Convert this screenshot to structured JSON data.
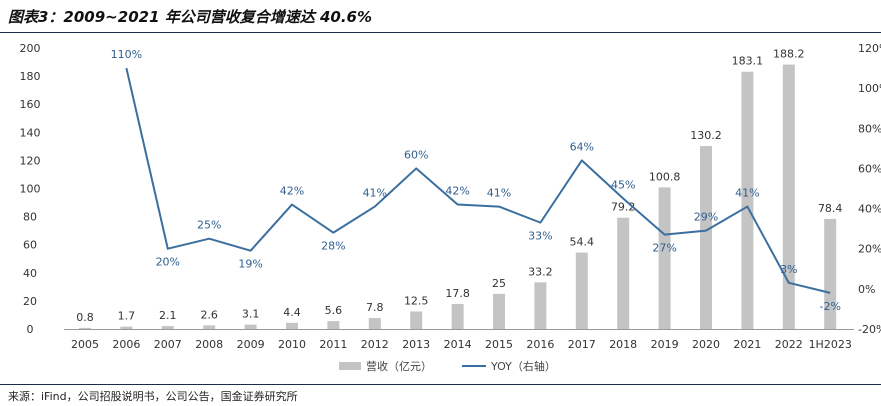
{
  "title": "图表3：2009~2021 年公司营收复合增速达 40.6%",
  "source": "来源：iFind，公司招股说明书，公司公告，国金证券研究所",
  "colors": {
    "bar": "#c4c4c4",
    "line": "#3a6f9f",
    "lineLabel": "#2f5f8f",
    "axis": "#999999"
  },
  "chart_data": {
    "type": "bar+line",
    "categories": [
      "2005",
      "2006",
      "2007",
      "2008",
      "2009",
      "2010",
      "2011",
      "2012",
      "2013",
      "2014",
      "2015",
      "2016",
      "2017",
      "2018",
      "2019",
      "2020",
      "2021",
      "2022",
      "1H2023"
    ],
    "series": [
      {
        "name": "营收（亿元）",
        "type": "bar",
        "axis": "left",
        "values": [
          0.8,
          1.7,
          2.1,
          2.6,
          3.1,
          4.4,
          5.6,
          7.8,
          12.5,
          17.8,
          25,
          33.2,
          54.4,
          79.2,
          100.8,
          130.2,
          183.1,
          188.2,
          78.4
        ],
        "labels": [
          "0.8",
          "1.7",
          "2.1",
          "2.6",
          "3.1",
          "4.4",
          "5.6",
          "7.8",
          "12.5",
          "17.8",
          "25",
          "33.2",
          "54.4",
          "79.2",
          "100.8",
          "130.2",
          "183.1",
          "188.2",
          "78.4"
        ]
      },
      {
        "name": "YOY（右轴）",
        "type": "line",
        "axis": "right",
        "values": [
          null,
          110,
          20,
          25,
          19,
          42,
          28,
          41,
          60,
          42,
          41,
          33,
          64,
          45,
          27,
          29,
          41,
          3,
          -2
        ],
        "labels": [
          "",
          "110%",
          "20%",
          "25%",
          "19%",
          "42%",
          "28%",
          "41%",
          "60%",
          "42%",
          "41%",
          "33%",
          "64%",
          "45%",
          "27%",
          "29%",
          "41%",
          "3%",
          "-2%"
        ]
      }
    ],
    "y_left": {
      "min": 0,
      "max": 200,
      "ticks": [
        "0",
        "20",
        "40",
        "60",
        "80",
        "100",
        "120",
        "140",
        "160",
        "180",
        "200"
      ]
    },
    "y_right": {
      "min": -20,
      "max": 120,
      "ticks": [
        "-20%",
        "0%",
        "20%",
        "40%",
        "60%",
        "80%",
        "100%",
        "120%"
      ]
    },
    "legend_position": "bottom-center",
    "grid": false
  }
}
